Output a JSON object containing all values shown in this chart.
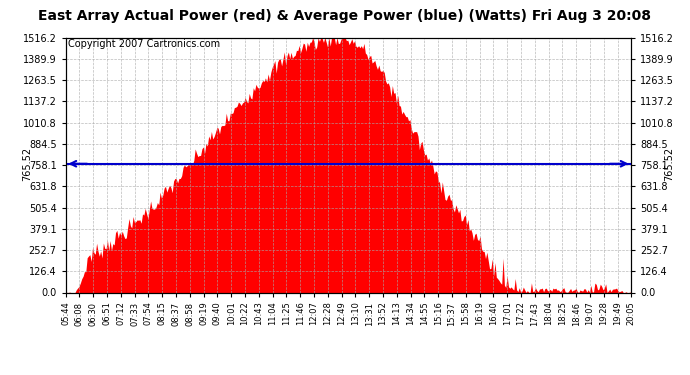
{
  "title": "East Array Actual Power (red) & Average Power (blue) (Watts) Fri Aug 3 20:08",
  "copyright": "Copyright 2007 Cartronics.com",
  "avg_power": 765.52,
  "y_max": 1516.2,
  "y_ticks": [
    0.0,
    126.4,
    252.7,
    379.1,
    505.4,
    631.8,
    758.1,
    884.5,
    1010.8,
    1137.2,
    1263.5,
    1389.9,
    1516.2
  ],
  "y_tick_labels": [
    "0.0",
    "126.4",
    "252.7",
    "379.1",
    "505.4",
    "631.8",
    "758.1",
    "884.5",
    "1010.8",
    "1137.2",
    "1263.5",
    "1389.9",
    "1516.2"
  ],
  "x_labels": [
    "05:44",
    "06:08",
    "06:30",
    "06:51",
    "07:12",
    "07:33",
    "07:54",
    "08:15",
    "08:37",
    "08:58",
    "09:19",
    "09:40",
    "10:01",
    "10:22",
    "10:43",
    "11:04",
    "11:25",
    "11:46",
    "12:07",
    "12:28",
    "12:49",
    "13:10",
    "13:31",
    "13:52",
    "14:13",
    "14:34",
    "14:55",
    "15:16",
    "15:37",
    "15:58",
    "16:19",
    "16:40",
    "17:01",
    "17:22",
    "17:43",
    "18:04",
    "18:25",
    "18:46",
    "19:07",
    "19:28",
    "19:49",
    "20:05"
  ],
  "fill_color": "#FF0000",
  "line_color": "#0000CC",
  "background_color": "#FFFFFF",
  "grid_color": "#AAAAAA",
  "title_fontsize": 10,
  "copyright_fontsize": 7,
  "avg_label_fontsize": 7,
  "tick_fontsize": 7,
  "xtick_fontsize": 6
}
